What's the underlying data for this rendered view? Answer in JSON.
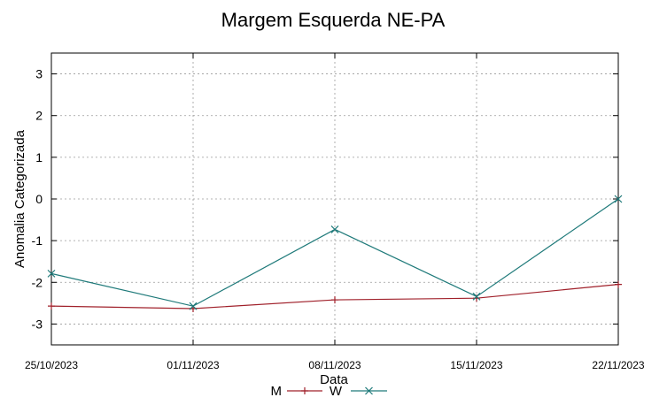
{
  "chart_data": {
    "type": "line",
    "title": "Margem Esquerda NE-PA",
    "xlabel": "Data",
    "ylabel": "Anomalia Categorizada",
    "x": [
      "25/10/2023",
      "01/11/2023",
      "08/11/2023",
      "15/11/2023",
      "22/11/2023"
    ],
    "ylim": [
      -3.5,
      3.5
    ],
    "yticks": [
      "3",
      "2",
      "1",
      "0",
      "-1",
      "-2",
      "-3"
    ],
    "grid": true,
    "legend_position": "bottom-center",
    "series": [
      {
        "name": "M",
        "color": "#a0202a",
        "marker": "plus",
        "values": [
          -2.57,
          -2.63,
          -2.42,
          -2.38,
          -2.05
        ]
      },
      {
        "name": "W",
        "color": "#1f7a7a",
        "marker": "x",
        "values": [
          -1.79,
          -2.57,
          -0.73,
          -2.34,
          0.0
        ]
      }
    ]
  }
}
